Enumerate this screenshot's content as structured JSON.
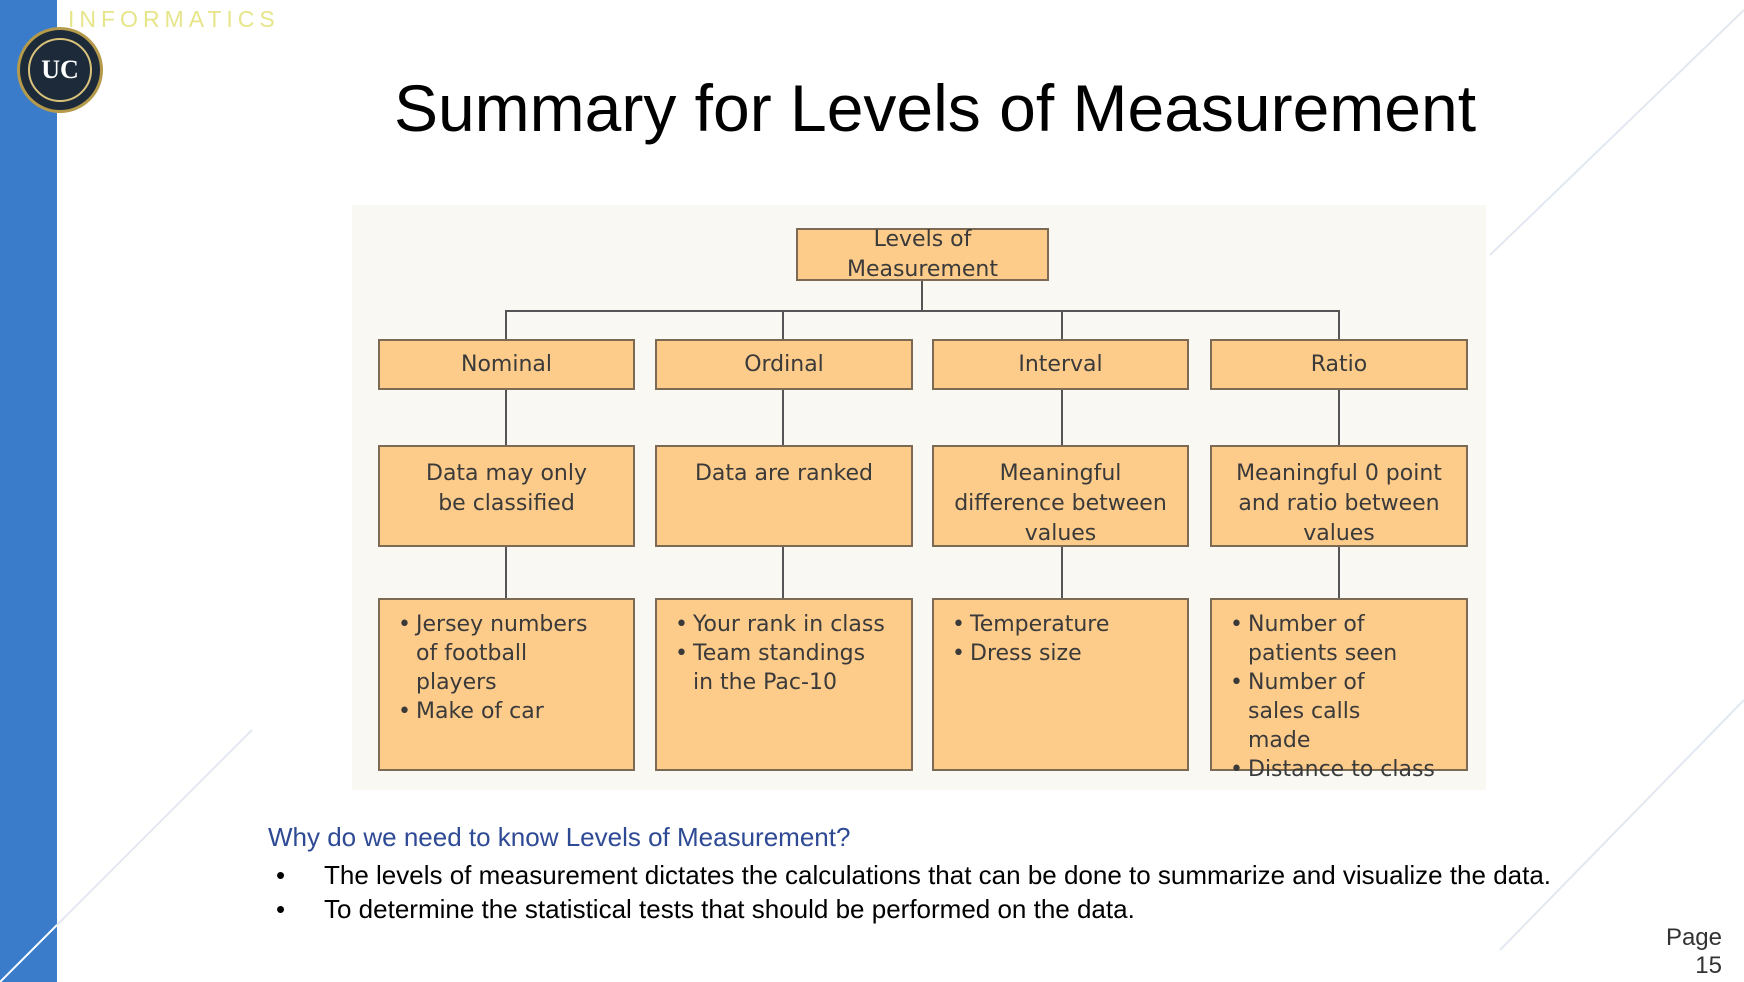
{
  "slide": {
    "brand": "INFORMATICS",
    "logo_text": "UC",
    "title": "Summary for Levels of Measurement",
    "page_label": "Page",
    "page_number": "15"
  },
  "diagram": {
    "root": "Levels of Measurement",
    "levels": [
      {
        "name": "Nominal",
        "description": "Data may only be classified",
        "examples": [
          "Jersey numbers of football players",
          "Make of car"
        ]
      },
      {
        "name": "Ordinal",
        "description": "Data are ranked",
        "examples": [
          "Your rank in class",
          "Team standings in the Pac-10"
        ]
      },
      {
        "name": "Interval",
        "description": "Meaningful difference between values",
        "examples": [
          "Temperature",
          "Dress size"
        ]
      },
      {
        "name": "Ratio",
        "description": "Meaningful 0 point and ratio between values",
        "examples": [
          "Number of patients seen",
          "Number of sales calls made",
          "Distance to class"
        ]
      }
    ]
  },
  "notes": {
    "question": "Why do we need to know Levels of Measurement?",
    "points": [
      "The levels of measurement dictates the calculations that can be done to summarize and visualize the data.",
      "To determine the statistical tests that should be performed on the data."
    ]
  },
  "colors": {
    "sidebar": "#3a7cc9",
    "box_fill": "#fdcb8a",
    "question_text": "#2e4a95"
  }
}
